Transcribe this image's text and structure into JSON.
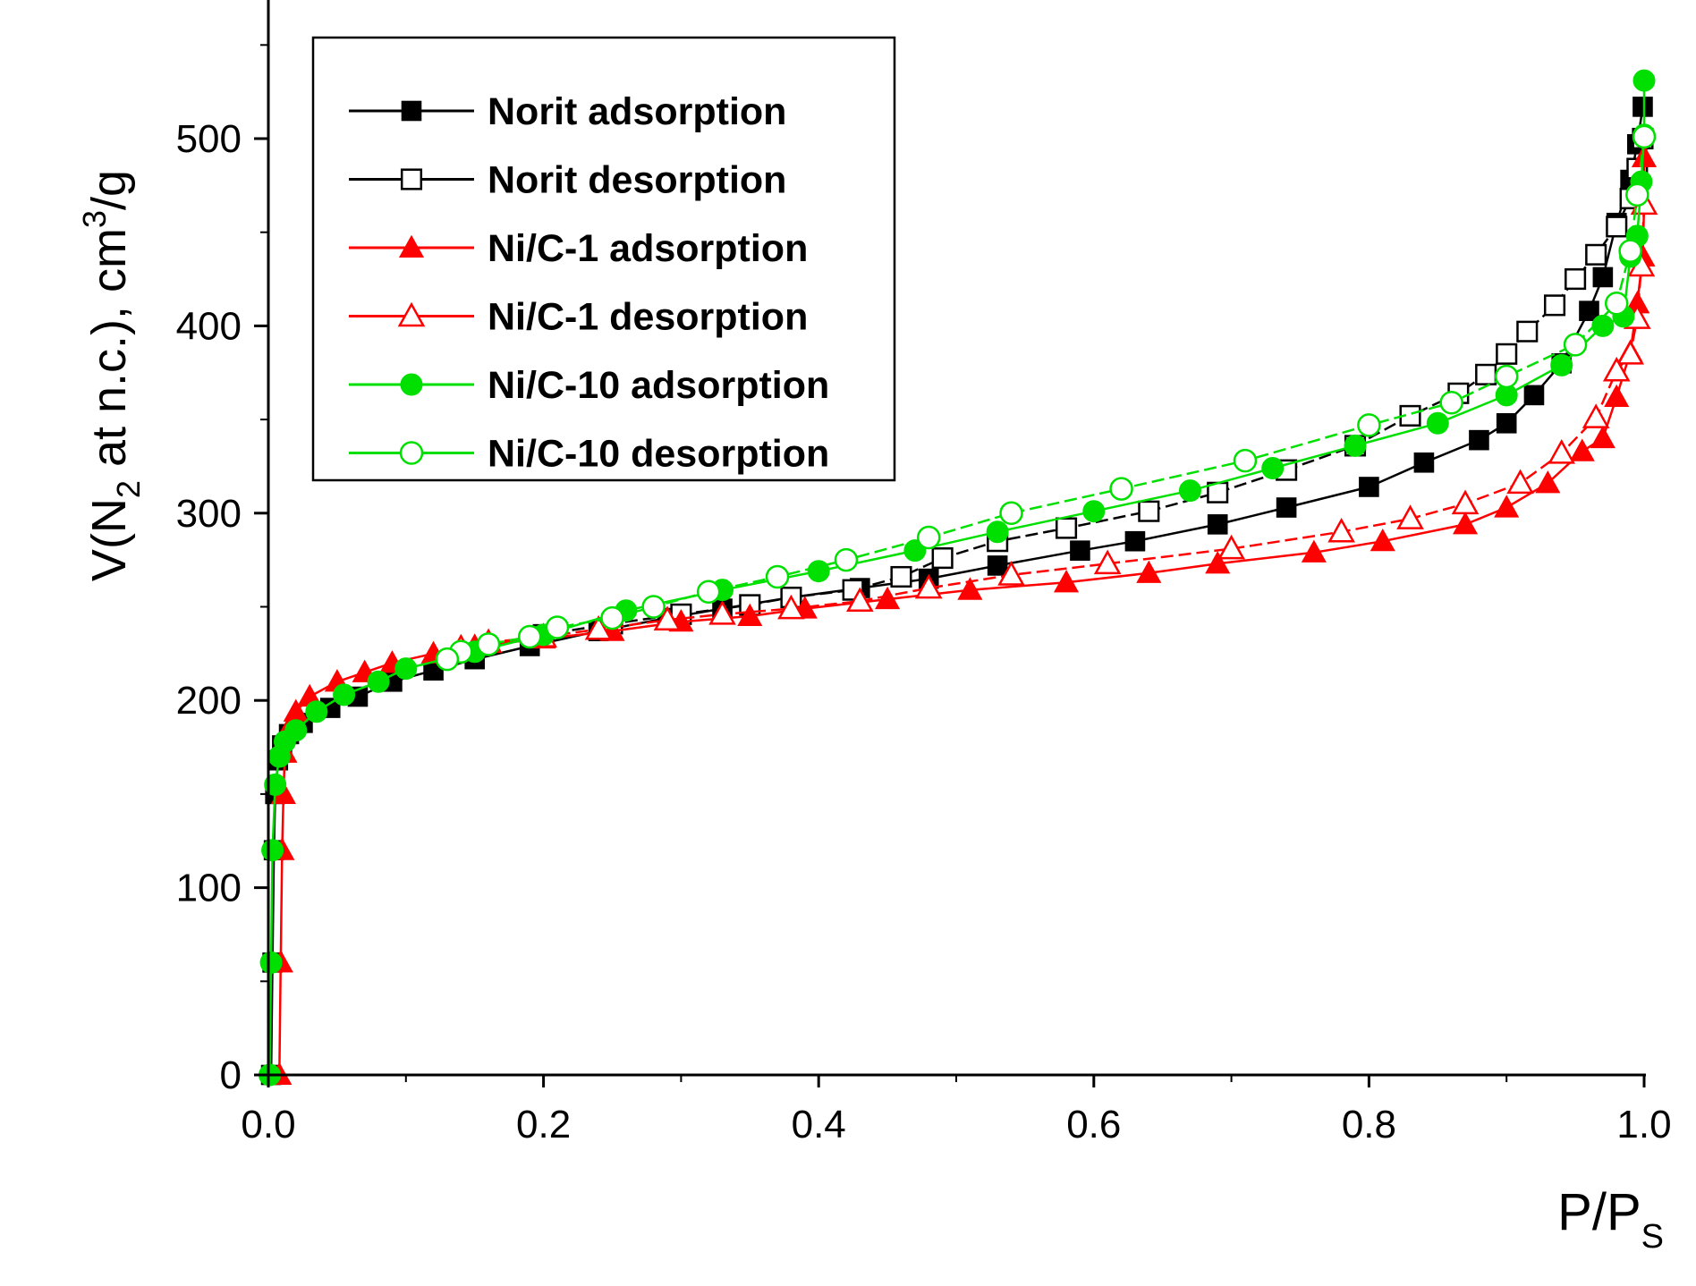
{
  "chart_data": {
    "type": "line",
    "title": "",
    "xlabel": "P/P",
    "xlabel_sub": "S",
    "ylabel": {
      "prefix": "V(N",
      "sub": "2",
      "middle": " at n.c.), cm",
      "sup": "3",
      "suffix": "/g"
    },
    "xlim": [
      0,
      1.0
    ],
    "ylim": [
      0,
      550
    ],
    "x_ticks": [
      0.0,
      0.2,
      0.4,
      0.6,
      0.8,
      1.0
    ],
    "x_tick_labels": [
      "0.0",
      "0.2",
      "0.4",
      "0.6",
      "0.8",
      "1.0"
    ],
    "y_ticks": [
      0,
      100,
      200,
      300,
      400,
      500
    ],
    "y_tick_labels": [
      "0",
      "100",
      "200",
      "300",
      "400",
      "500"
    ],
    "grid": false,
    "legend_position": "top-left",
    "series": [
      {
        "name": "Norit adsorption",
        "color": "#000000",
        "marker": "square",
        "filled": true,
        "points": [
          [
            0.002,
            0
          ],
          [
            0.003,
            60
          ],
          [
            0.004,
            120
          ],
          [
            0.005,
            150
          ],
          [
            0.007,
            168
          ],
          [
            0.01,
            176
          ],
          [
            0.015,
            182
          ],
          [
            0.025,
            188
          ],
          [
            0.045,
            196
          ],
          [
            0.065,
            202
          ],
          [
            0.09,
            210
          ],
          [
            0.12,
            216
          ],
          [
            0.15,
            222
          ],
          [
            0.19,
            229
          ],
          [
            0.24,
            237
          ],
          [
            0.29,
            244
          ],
          [
            0.33,
            249
          ],
          [
            0.38,
            255
          ],
          [
            0.43,
            260
          ],
          [
            0.48,
            265
          ],
          [
            0.53,
            272
          ],
          [
            0.59,
            280
          ],
          [
            0.63,
            285
          ],
          [
            0.69,
            294
          ],
          [
            0.74,
            303
          ],
          [
            0.8,
            314
          ],
          [
            0.84,
            327
          ],
          [
            0.88,
            339
          ],
          [
            0.9,
            348
          ],
          [
            0.92,
            363
          ],
          [
            0.94,
            380
          ],
          [
            0.96,
            408
          ],
          [
            0.97,
            426
          ],
          [
            0.98,
            455
          ],
          [
            0.99,
            478
          ],
          [
            0.995,
            497
          ],
          [
            0.999,
            517
          ]
        ]
      },
      {
        "name": "Norit desorption",
        "color": "#000000",
        "marker": "square",
        "filled": false,
        "points": [
          [
            0.999,
            500
          ],
          [
            0.995,
            484
          ],
          [
            0.99,
            468
          ],
          [
            0.98,
            453
          ],
          [
            0.965,
            438
          ],
          [
            0.95,
            425
          ],
          [
            0.935,
            411
          ],
          [
            0.915,
            397
          ],
          [
            0.9,
            385
          ],
          [
            0.885,
            374
          ],
          [
            0.865,
            364
          ],
          [
            0.83,
            352
          ],
          [
            0.79,
            336
          ],
          [
            0.74,
            323
          ],
          [
            0.69,
            311
          ],
          [
            0.64,
            301
          ],
          [
            0.58,
            292
          ],
          [
            0.53,
            285
          ],
          [
            0.49,
            276
          ],
          [
            0.46,
            266
          ],
          [
            0.425,
            259
          ],
          [
            0.38,
            255
          ],
          [
            0.35,
            251
          ],
          [
            0.3,
            246
          ],
          [
            0.25,
            241
          ],
          [
            0.2,
            235
          ]
        ]
      },
      {
        "name": "Ni/C-1 adsorption",
        "color": "#ff0000",
        "marker": "triangle",
        "filled": true,
        "points": [
          [
            0.008,
            0
          ],
          [
            0.009,
            60
          ],
          [
            0.01,
            120
          ],
          [
            0.011,
            150
          ],
          [
            0.012,
            172
          ],
          [
            0.015,
            185
          ],
          [
            0.02,
            194
          ],
          [
            0.03,
            202
          ],
          [
            0.05,
            210
          ],
          [
            0.07,
            215
          ],
          [
            0.09,
            220
          ],
          [
            0.12,
            225
          ],
          [
            0.15,
            229
          ],
          [
            0.2,
            233
          ],
          [
            0.25,
            237
          ],
          [
            0.3,
            242
          ],
          [
            0.35,
            245
          ],
          [
            0.39,
            249
          ],
          [
            0.45,
            254
          ],
          [
            0.51,
            259
          ],
          [
            0.58,
            263
          ],
          [
            0.64,
            268
          ],
          [
            0.69,
            273
          ],
          [
            0.76,
            279
          ],
          [
            0.81,
            285
          ],
          [
            0.87,
            294
          ],
          [
            0.9,
            303
          ],
          [
            0.93,
            316
          ],
          [
            0.955,
            333
          ],
          [
            0.97,
            340
          ],
          [
            0.98,
            362
          ],
          [
            0.99,
            386
          ],
          [
            0.995,
            412
          ],
          [
            0.999,
            437
          ],
          [
            1.0,
            465
          ],
          [
            1.0,
            490
          ]
        ]
      },
      {
        "name": "Ni/C-1 desorption",
        "color": "#ff0000",
        "marker": "triangle",
        "filled": false,
        "points": [
          [
            1.0,
            465
          ],
          [
            0.998,
            432
          ],
          [
            0.995,
            404
          ],
          [
            0.99,
            385
          ],
          [
            0.98,
            376
          ],
          [
            0.965,
            351
          ],
          [
            0.94,
            332
          ],
          [
            0.91,
            316
          ],
          [
            0.87,
            305
          ],
          [
            0.83,
            297
          ],
          [
            0.78,
            290
          ],
          [
            0.7,
            281
          ],
          [
            0.61,
            273
          ],
          [
            0.54,
            267
          ],
          [
            0.48,
            260
          ],
          [
            0.43,
            253
          ],
          [
            0.38,
            249
          ],
          [
            0.33,
            246
          ],
          [
            0.29,
            243
          ],
          [
            0.24,
            238
          ],
          [
            0.2,
            234
          ],
          [
            0.16,
            231
          ],
          [
            0.14,
            228
          ]
        ]
      },
      {
        "name": "Ni/C-10 adsorption",
        "color": "#00e000",
        "marker": "circle",
        "filled": true,
        "points": [
          [
            0.001,
            0
          ],
          [
            0.002,
            60
          ],
          [
            0.003,
            120
          ],
          [
            0.005,
            155
          ],
          [
            0.008,
            170
          ],
          [
            0.012,
            178
          ],
          [
            0.02,
            184
          ],
          [
            0.035,
            194
          ],
          [
            0.055,
            203
          ],
          [
            0.08,
            210
          ],
          [
            0.1,
            217
          ],
          [
            0.15,
            226
          ],
          [
            0.2,
            235
          ],
          [
            0.26,
            248
          ],
          [
            0.33,
            259
          ],
          [
            0.4,
            269
          ],
          [
            0.47,
            280
          ],
          [
            0.53,
            290
          ],
          [
            0.6,
            301
          ],
          [
            0.67,
            312
          ],
          [
            0.73,
            324
          ],
          [
            0.79,
            336
          ],
          [
            0.85,
            348
          ],
          [
            0.9,
            363
          ],
          [
            0.94,
            379
          ],
          [
            0.97,
            400
          ],
          [
            0.985,
            405
          ],
          [
            0.99,
            437
          ],
          [
            0.995,
            448
          ],
          [
            0.998,
            477
          ],
          [
            1.0,
            502
          ],
          [
            1.0,
            531
          ]
        ]
      },
      {
        "name": "Ni/C-10 desorption",
        "color": "#00e000",
        "marker": "circle",
        "filled": false,
        "points": [
          [
            1.0,
            501
          ],
          [
            0.995,
            470
          ],
          [
            0.99,
            440
          ],
          [
            0.98,
            412
          ],
          [
            0.95,
            390
          ],
          [
            0.9,
            373
          ],
          [
            0.86,
            359
          ],
          [
            0.8,
            347
          ],
          [
            0.71,
            328
          ],
          [
            0.62,
            313
          ],
          [
            0.54,
            300
          ],
          [
            0.48,
            287
          ],
          [
            0.42,
            275
          ],
          [
            0.37,
            266
          ],
          [
            0.32,
            258
          ],
          [
            0.28,
            250
          ],
          [
            0.25,
            244
          ],
          [
            0.21,
            239
          ],
          [
            0.19,
            234
          ],
          [
            0.16,
            230
          ],
          [
            0.14,
            226
          ],
          [
            0.13,
            222
          ]
        ]
      }
    ]
  }
}
